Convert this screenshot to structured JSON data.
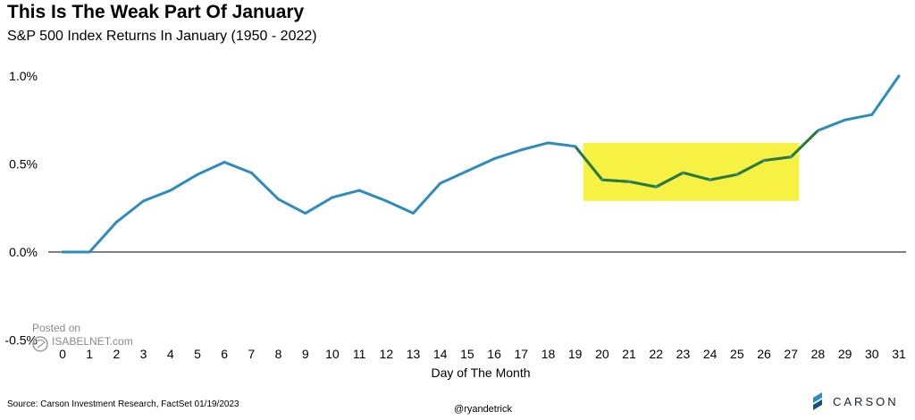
{
  "header": {
    "title": "This Is The Weak Part Of January",
    "subtitle": "S&P 500 Index Returns In January (1950 - 2022)"
  },
  "footer": {
    "source": "Source: Carson Investment Research, FactSet 01/19/2023",
    "handle": "@ryandetrick",
    "logo_text": "CARSON"
  },
  "watermark": {
    "line1": "Posted on",
    "line2": "ISABELNET.com"
  },
  "colors": {
    "line": "#2e8bbd",
    "highlight_line": "#2a7a3a",
    "highlight_box": "#f6f142",
    "logo": "#2e8bbd"
  },
  "chart_data": {
    "type": "line",
    "title": "This Is The Weak Part Of January",
    "subtitle": "S&P 500 Index Returns In January (1950 - 2022)",
    "xlabel": "Day of The Month",
    "ylabel": "",
    "x": [
      0,
      1,
      2,
      3,
      4,
      5,
      6,
      7,
      8,
      9,
      10,
      11,
      12,
      13,
      14,
      15,
      16,
      17,
      18,
      19,
      20,
      21,
      22,
      23,
      24,
      25,
      26,
      27,
      28,
      29,
      30,
      31
    ],
    "values": [
      0.0,
      0.0,
      0.17,
      0.29,
      0.35,
      0.44,
      0.51,
      0.45,
      0.3,
      0.22,
      0.31,
      0.35,
      0.29,
      0.22,
      0.39,
      0.46,
      0.53,
      0.58,
      0.62,
      0.6,
      0.41,
      0.4,
      0.37,
      0.45,
      0.41,
      0.44,
      0.52,
      0.54,
      0.69,
      0.75,
      0.78,
      1.0
    ],
    "ylim": [
      -0.5,
      1.0
    ],
    "y_ticks": [
      "1.0%",
      "0.5%",
      "0.0%",
      "-0.5%"
    ],
    "y_tick_values": [
      1.0,
      0.5,
      0.0,
      -0.5
    ],
    "highlight": {
      "x_from": 19.3,
      "x_to": 27.3,
      "y_from": 0.29,
      "y_to": 0.62,
      "days_from": 19,
      "days_to": 28
    },
    "grid": false
  }
}
